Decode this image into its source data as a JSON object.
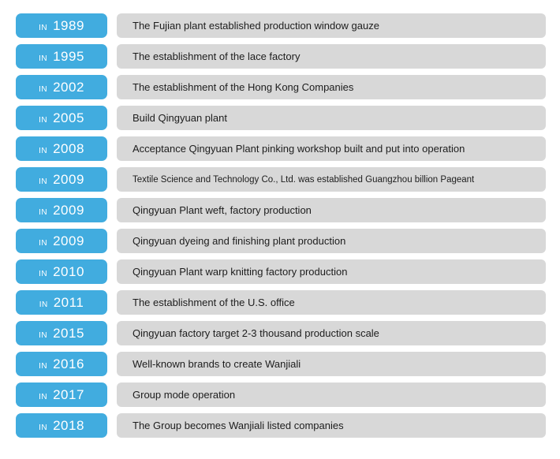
{
  "colors": {
    "badge_blue": "#41ACDF",
    "bar_gray": "#D8D8D8",
    "badge_text": "#FFFFFF",
    "description_text": "#1D1D1D",
    "page_background": "#FFFFFF"
  },
  "badge_prefix": "IN",
  "timeline": [
    {
      "year": "1989",
      "description": "The Fujian plant established production window gauze"
    },
    {
      "year": "1995",
      "description": "The establishment of the lace factory"
    },
    {
      "year": "2002",
      "description": "The establishment of the Hong Kong Companies"
    },
    {
      "year": "2005",
      "description": "Build Qingyuan plant"
    },
    {
      "year": "2008",
      "description": "Acceptance Qingyuan Plant pinking workshop built and put into operation"
    },
    {
      "year": "2009",
      "description": "Textile Science and Technology Co., Ltd. was established Guangzhou billion Pageant"
    },
    {
      "year": "2009",
      "description": "Qingyuan Plant weft, factory production"
    },
    {
      "year": "2009",
      "description": "Qingyuan dyeing and finishing plant production"
    },
    {
      "year": "2010",
      "description": "Qingyuan Plant warp knitting factory production"
    },
    {
      "year": "2011",
      "description": "The establishment of the U.S. office"
    },
    {
      "year": "2015",
      "description": "Qingyuan factory target 2-3 thousand production scale"
    },
    {
      "year": "2016",
      "description": "Well-known brands to create Wanjiali"
    },
    {
      "year": "2017",
      "description": "Group mode operation"
    },
    {
      "year": "2018",
      "description": "The Group becomes Wanjiali listed companies"
    }
  ]
}
